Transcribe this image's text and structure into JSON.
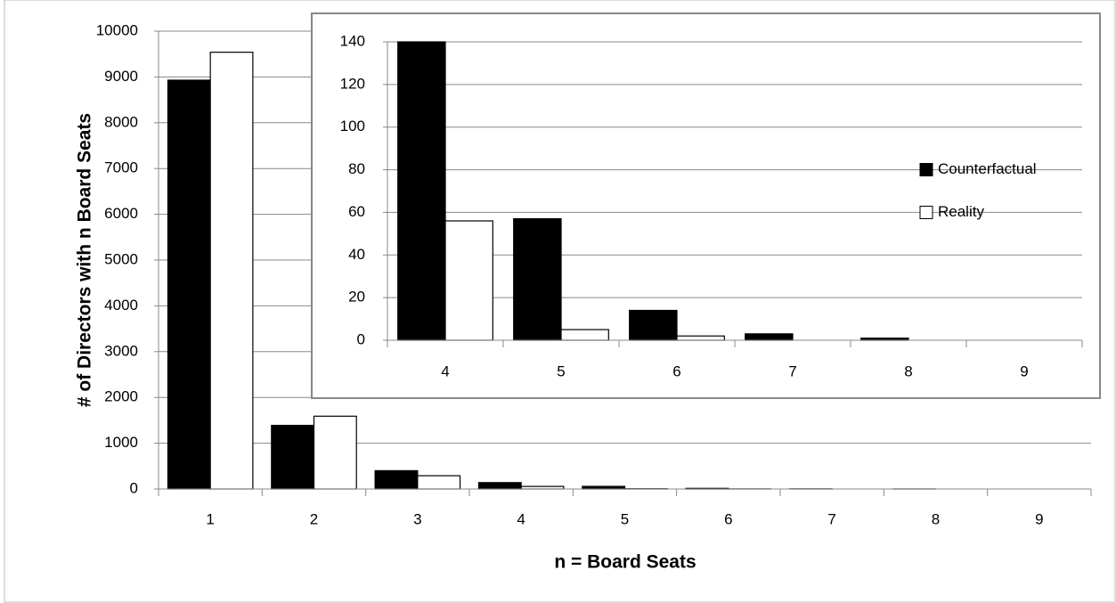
{
  "chart_data": [
    {
      "type": "bar",
      "x_label": "n = Board Seats",
      "y_label": "# of  Directors with n Board Seats",
      "categories": [
        "1",
        "2",
        "3",
        "4",
        "5",
        "6",
        "7",
        "8",
        "9"
      ],
      "series": [
        {
          "color": "#000000",
          "values": [
            8930,
            1390,
            400,
            140,
            57,
            14,
            3,
            1,
            0
          ]
        },
        {
          "color": "#ffffff",
          "values": [
            9540,
            1590,
            290,
            56,
            5,
            2,
            0,
            0,
            0
          ]
        }
      ],
      "ylim": [
        0,
        10000
      ],
      "yticks": [
        0,
        1000,
        2000,
        3000,
        4000,
        5000,
        6000,
        7000,
        8000,
        9000,
        10000
      ],
      "grid": true
    },
    {
      "type": "bar",
      "categories": [
        "4",
        "5",
        "6",
        "7",
        "8",
        "9"
      ],
      "series": [
        {
          "name": "Counterfactual",
          "color": "#000000",
          "values": [
            140,
            57,
            14,
            3,
            1,
            0
          ]
        },
        {
          "name": "Reality",
          "color": "#ffffff",
          "values": [
            56,
            5,
            2,
            0,
            0,
            0
          ]
        }
      ],
      "ylim": [
        0,
        140
      ],
      "yticks": [
        0,
        20,
        40,
        60,
        80,
        100,
        120,
        140
      ],
      "grid": true,
      "legend": "right"
    }
  ]
}
